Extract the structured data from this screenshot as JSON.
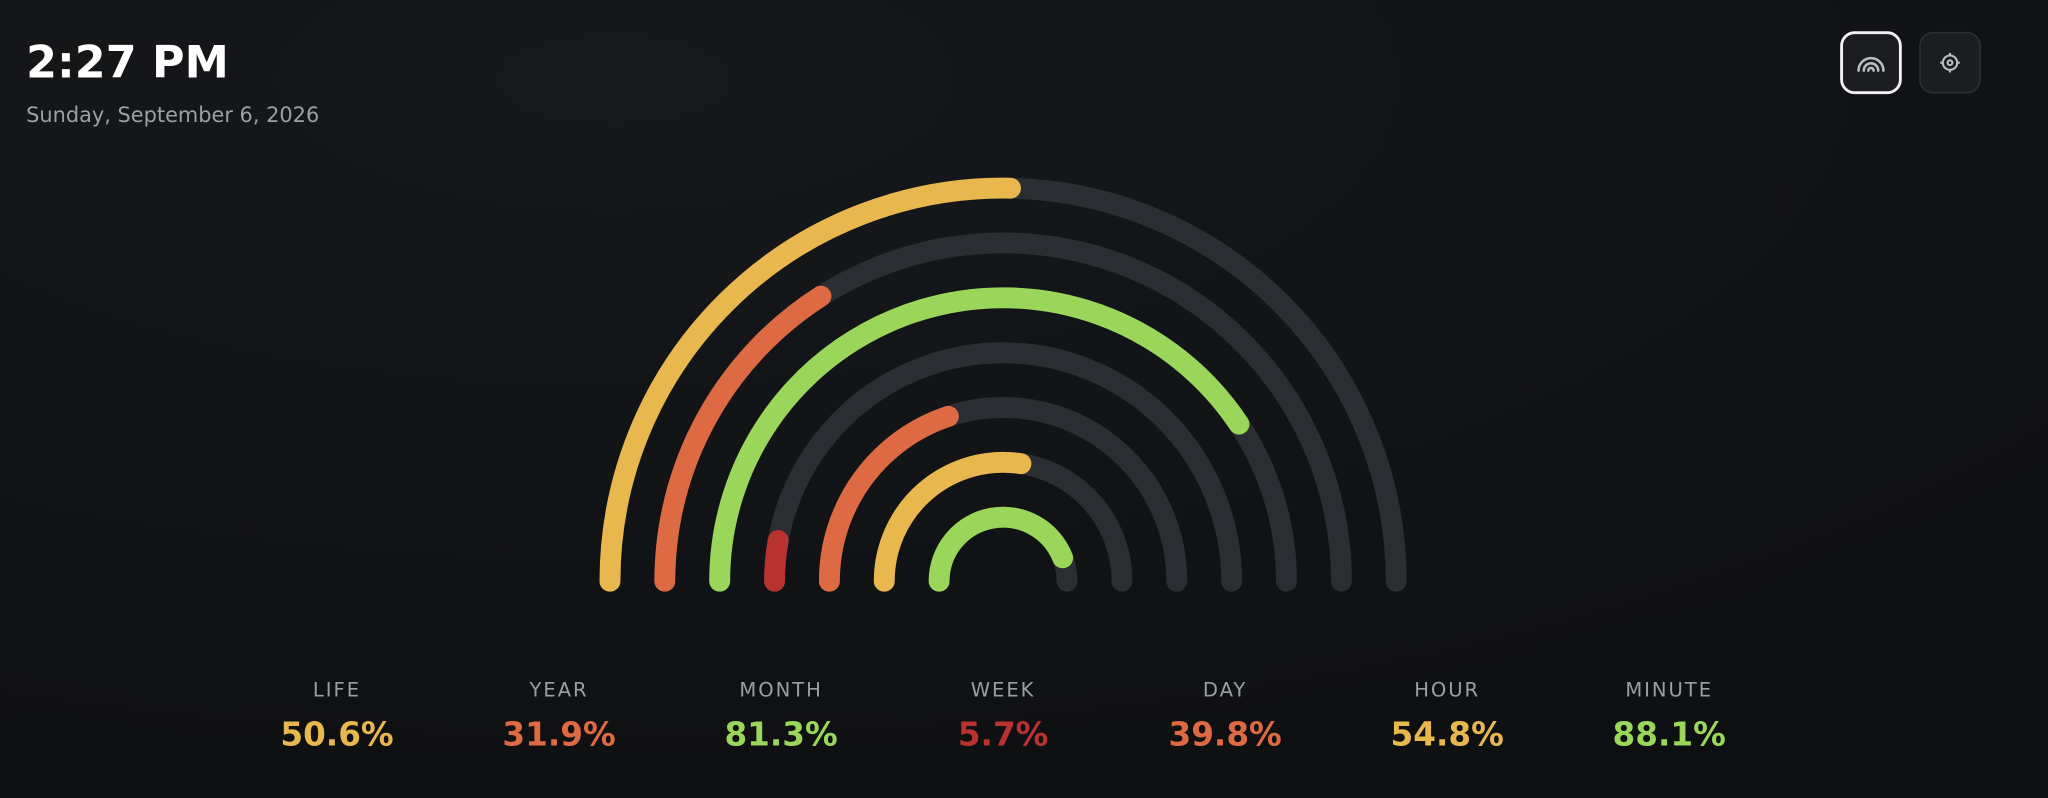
{
  "header": {
    "time": "2:27 PM",
    "date": "Sunday, September 6, 2026"
  },
  "metrics": [
    {
      "label": "LIFE",
      "value": 50.6,
      "value_label": "50.6%",
      "color": "#e8b84f"
    },
    {
      "label": "YEAR",
      "value": 31.9,
      "value_label": "31.9%",
      "color": "#dd6a42"
    },
    {
      "label": "MONTH",
      "value": 81.3,
      "value_label": "81.3%",
      "color": "#9ad65a"
    },
    {
      "label": "WEEK",
      "value": 5.7,
      "value_label": "5.7%",
      "color": "#b83230"
    },
    {
      "label": "DAY",
      "value": 39.8,
      "value_label": "39.8%",
      "color": "#dd6a42"
    },
    {
      "label": "HOUR",
      "value": 54.8,
      "value_label": "54.8%",
      "color": "#e8b84f"
    },
    {
      "label": "MINUTE",
      "value": 88.1,
      "value_label": "88.1%",
      "color": "#9ad65a"
    }
  ]
}
